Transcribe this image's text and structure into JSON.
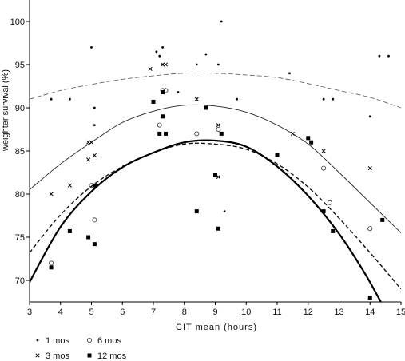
{
  "chart_data": {
    "type": "scatter",
    "title": "",
    "xlabel": "CIT mean (hours)",
    "ylabel": "weighter survival (%)",
    "xlim": [
      3,
      15
    ],
    "ylim": [
      67.5,
      102.5
    ],
    "xticks": [
      "3",
      "4",
      "5",
      "6",
      "7",
      "8",
      "9",
      "10",
      "11",
      "12",
      "13",
      "14",
      "15"
    ],
    "yticks": [
      "70",
      "75",
      "80",
      "85",
      "90",
      "95",
      "100"
    ],
    "grid": false,
    "legend": {
      "placement": "bottom-left",
      "entries": [
        {
          "marker": "dot",
          "label": "1 mos"
        },
        {
          "marker": "circle",
          "label": "6 mos"
        },
        {
          "marker": "cross",
          "label": "3 mos"
        },
        {
          "marker": "square",
          "label": "12 mos"
        }
      ]
    },
    "series": [
      {
        "name": "1 mos",
        "marker": "dot",
        "line_style": "thin-dashed",
        "points": [
          [
            3.7,
            91.0
          ],
          [
            4.3,
            91.0
          ],
          [
            5.0,
            97.0
          ],
          [
            5.1,
            90.0
          ],
          [
            5.1,
            88.0
          ],
          [
            7.1,
            96.5
          ],
          [
            7.2,
            96.0
          ],
          [
            7.3,
            97.0
          ],
          [
            7.3,
            95.0
          ],
          [
            7.3,
            89.0
          ],
          [
            7.8,
            91.8
          ],
          [
            8.4,
            95.0
          ],
          [
            8.7,
            96.2
          ],
          [
            9.1,
            95.0
          ],
          [
            9.2,
            100.0
          ],
          [
            9.3,
            78.0
          ],
          [
            9.7,
            91.0
          ],
          [
            11.4,
            94.0
          ],
          [
            12.5,
            91.0
          ],
          [
            12.8,
            91.0
          ],
          [
            14.0,
            89.0
          ],
          [
            14.3,
            96.0
          ],
          [
            14.6,
            96.0
          ]
        ],
        "fit": [
          [
            3.0,
            91.0
          ],
          [
            4.0,
            92.0
          ],
          [
            5.0,
            92.7
          ],
          [
            6.0,
            93.3
          ],
          [
            7.0,
            93.7
          ],
          [
            8.0,
            94.0
          ],
          [
            9.0,
            94.0
          ],
          [
            10.0,
            93.8
          ],
          [
            11.0,
            93.5
          ],
          [
            12.0,
            92.8
          ],
          [
            13.0,
            92.0
          ],
          [
            14.0,
            91.2
          ],
          [
            15.0,
            90.0
          ]
        ]
      },
      {
        "name": "6 mos",
        "marker": "circle",
        "line_style": "dashed",
        "points": [
          [
            3.7,
            72.0
          ],
          [
            5.0,
            81.0
          ],
          [
            5.1,
            77.0
          ],
          [
            7.2,
            88.0
          ],
          [
            7.3,
            92.0
          ],
          [
            7.4,
            92.0
          ],
          [
            8.4,
            87.0
          ],
          [
            9.1,
            87.5
          ],
          [
            12.5,
            83.0
          ],
          [
            12.7,
            79.0
          ],
          [
            14.0,
            76.0
          ]
        ],
        "fit": [
          [
            3.0,
            73.2
          ],
          [
            4.0,
            77.6
          ],
          [
            5.0,
            80.9
          ],
          [
            6.0,
            83.2
          ],
          [
            7.0,
            84.8
          ],
          [
            8.0,
            85.8
          ],
          [
            9.0,
            85.8
          ],
          [
            10.0,
            85.2
          ],
          [
            11.0,
            83.5
          ],
          [
            12.0,
            80.8
          ],
          [
            13.0,
            77.2
          ],
          [
            14.0,
            73.2
          ],
          [
            15.0,
            69.0
          ]
        ]
      },
      {
        "name": "3 mos",
        "marker": "cross",
        "line_style": "thin-solid",
        "points": [
          [
            3.7,
            80.0
          ],
          [
            4.3,
            81.0
          ],
          [
            4.9,
            84.0
          ],
          [
            4.9,
            86.0
          ],
          [
            5.0,
            86.0
          ],
          [
            5.1,
            84.5
          ],
          [
            6.9,
            94.5
          ],
          [
            7.3,
            95.0
          ],
          [
            7.4,
            95.0
          ],
          [
            7.3,
            89.0
          ],
          [
            8.4,
            91.0
          ],
          [
            9.1,
            82.0
          ],
          [
            9.1,
            88.0
          ],
          [
            9.2,
            87.0
          ],
          [
            11.5,
            87.0
          ],
          [
            12.5,
            85.0
          ],
          [
            14.0,
            83.0
          ]
        ],
        "fit": [
          [
            3.0,
            80.5
          ],
          [
            4.0,
            83.5
          ],
          [
            5.0,
            86.0
          ],
          [
            6.0,
            88.3
          ],
          [
            7.0,
            89.6
          ],
          [
            8.0,
            90.3
          ],
          [
            9.0,
            90.2
          ],
          [
            10.0,
            89.5
          ],
          [
            11.0,
            88.0
          ],
          [
            12.0,
            85.8
          ],
          [
            13.0,
            82.5
          ],
          [
            14.0,
            79.0
          ],
          [
            15.0,
            75.5
          ]
        ]
      },
      {
        "name": "12 mos",
        "marker": "square",
        "line_style": "thick-solid",
        "points": [
          [
            3.7,
            71.5
          ],
          [
            4.3,
            75.7
          ],
          [
            4.9,
            75.0
          ],
          [
            5.1,
            74.2
          ],
          [
            5.1,
            81.0
          ],
          [
            7.0,
            90.7
          ],
          [
            7.2,
            87.0
          ],
          [
            7.3,
            89.0
          ],
          [
            7.3,
            91.8
          ],
          [
            7.4,
            87.0
          ],
          [
            8.4,
            78.0
          ],
          [
            8.7,
            90.0
          ],
          [
            9.0,
            82.2
          ],
          [
            9.1,
            76.0
          ],
          [
            9.2,
            87.0
          ],
          [
            11.0,
            84.5
          ],
          [
            12.0,
            86.5
          ],
          [
            12.1,
            86.0
          ],
          [
            12.5,
            78.0
          ],
          [
            12.8,
            75.7
          ],
          [
            14.0,
            68.0
          ],
          [
            14.4,
            77.0
          ]
        ],
        "fit": [
          [
            3.0,
            69.8
          ],
          [
            4.0,
            76.2
          ],
          [
            5.0,
            80.3
          ],
          [
            6.0,
            83.1
          ],
          [
            7.0,
            84.8
          ],
          [
            8.0,
            86.0
          ],
          [
            9.0,
            86.2
          ],
          [
            10.0,
            85.5
          ],
          [
            11.0,
            83.2
          ],
          [
            12.0,
            79.8
          ],
          [
            13.0,
            75.4
          ],
          [
            13.8,
            71.0
          ],
          [
            14.35,
            67.5
          ]
        ]
      }
    ]
  }
}
